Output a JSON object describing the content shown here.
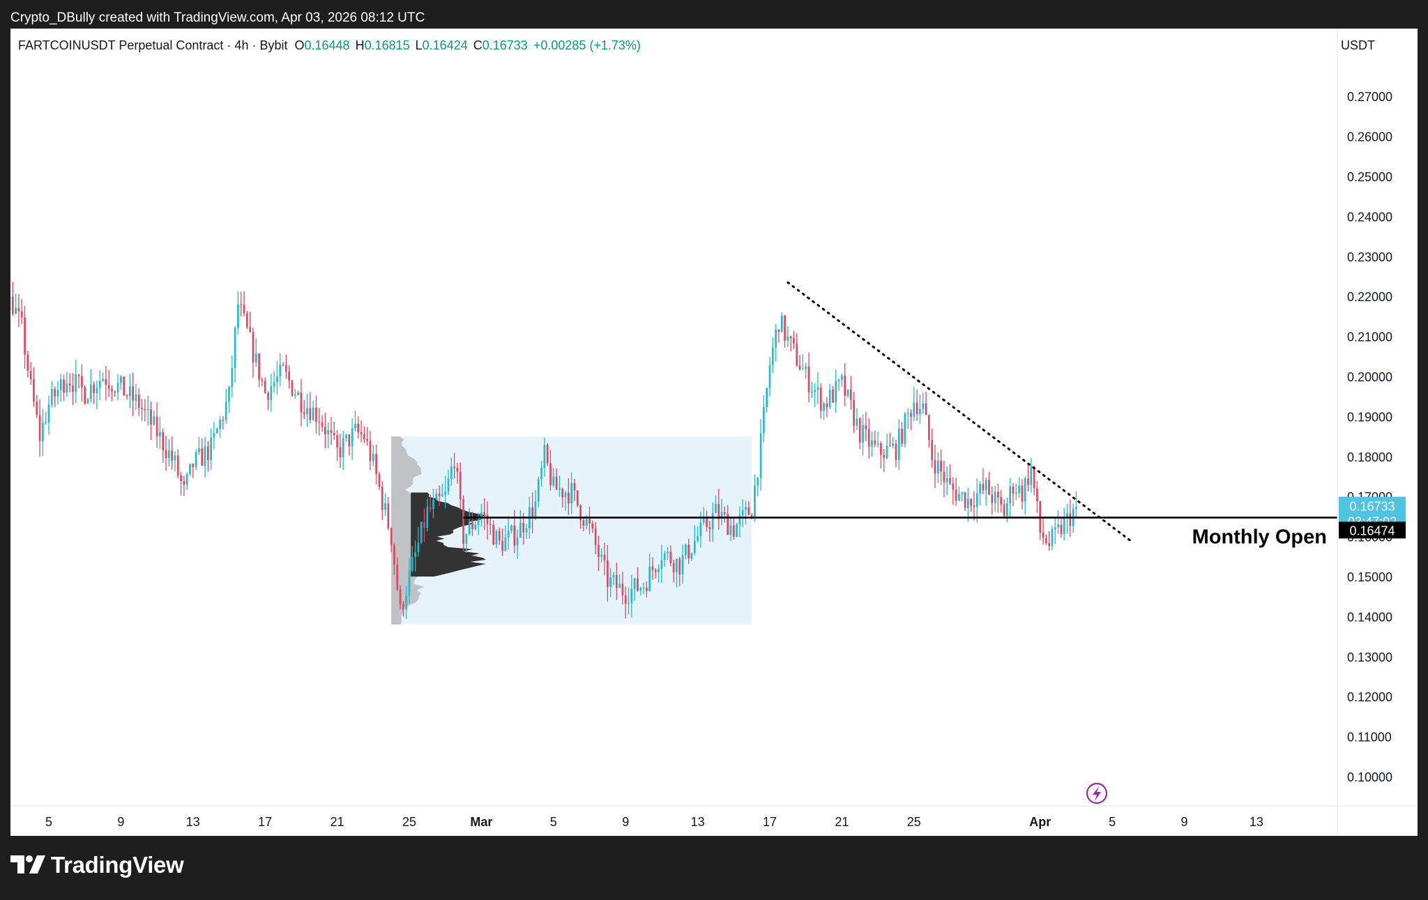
{
  "header": {
    "attribution": "Crypto_DBully created with TradingView.com, Apr 03, 2026 08:12 UTC"
  },
  "legend": {
    "symbol": "FARTCOINUSDT Perpetual Contract · 4h · Bybit",
    "open_label": "O",
    "open": "0.16448",
    "high_label": "H",
    "high": "0.16815",
    "low_label": "L",
    "low": "0.16424",
    "close_label": "C",
    "close": "0.16733",
    "change": "+0.00285 (+1.73%)"
  },
  "price_axis": {
    "currency": "USDT"
  },
  "badges": {
    "last_price": "0.16733",
    "countdown": "03:47:02",
    "level_price": "0.16474"
  },
  "footer": {
    "brand": "TradingView"
  },
  "colors": {
    "up": "#22b8cf",
    "down": "#e0465f",
    "last_price_badge": "#4fc3e0",
    "volume_profile": "#333333",
    "range_box": "#e7f3fb"
  },
  "chart_data": {
    "type": "candlestick",
    "interval": "4h",
    "ylim": [
      0.093,
      0.288
    ],
    "y_ticks": [
      "0.10000",
      "0.11000",
      "0.12000",
      "0.13000",
      "0.14000",
      "0.15000",
      "0.16000",
      "0.17000",
      "0.18000",
      "0.19000",
      "0.20000",
      "0.21000",
      "0.22000",
      "0.23000",
      "0.24000",
      "0.25000",
      "0.26000",
      "0.27000"
    ],
    "x_ticks": [
      {
        "label": "5",
        "date": "2026-02-05"
      },
      {
        "label": "9",
        "date": "2026-02-09"
      },
      {
        "label": "13",
        "date": "2026-02-13"
      },
      {
        "label": "17",
        "date": "2026-02-17"
      },
      {
        "label": "21",
        "date": "2026-02-21"
      },
      {
        "label": "25",
        "date": "2026-02-25"
      },
      {
        "label": "Mar",
        "date": "2026-03-01",
        "bold": true
      },
      {
        "label": "5",
        "date": "2026-03-05"
      },
      {
        "label": "9",
        "date": "2026-03-09"
      },
      {
        "label": "13",
        "date": "2026-03-13"
      },
      {
        "label": "17",
        "date": "2026-03-17"
      },
      {
        "label": "21",
        "date": "2026-03-21"
      },
      {
        "label": "25",
        "date": "2026-03-25"
      },
      {
        "label": "Apr",
        "date": "2026-04-01",
        "bold": true
      },
      {
        "label": "5",
        "date": "2026-04-05"
      },
      {
        "label": "9",
        "date": "2026-04-09"
      },
      {
        "label": "13",
        "date": "2026-04-13"
      }
    ],
    "price_path": [
      {
        "date": "2026-02-01",
        "price": 0.226
      },
      {
        "date": "2026-02-02",
        "price": 0.222
      },
      {
        "date": "2026-02-03",
        "price": 0.218
      },
      {
        "date": "2026-02-03T12:00",
        "price": 0.212
      },
      {
        "date": "2026-02-04",
        "price": 0.197
      },
      {
        "date": "2026-02-04T12:00",
        "price": 0.185
      },
      {
        "date": "2026-02-05",
        "price": 0.193
      },
      {
        "date": "2026-02-06",
        "price": 0.2
      },
      {
        "date": "2026-02-07",
        "price": 0.196
      },
      {
        "date": "2026-02-08",
        "price": 0.2
      },
      {
        "date": "2026-02-09",
        "price": 0.197
      },
      {
        "date": "2026-02-10",
        "price": 0.193
      },
      {
        "date": "2026-02-11",
        "price": 0.186
      },
      {
        "date": "2026-02-12",
        "price": 0.178
      },
      {
        "date": "2026-02-12T12:00",
        "price": 0.171
      },
      {
        "date": "2026-02-13",
        "price": 0.178
      },
      {
        "date": "2026-02-14",
        "price": 0.182
      },
      {
        "date": "2026-02-15",
        "price": 0.195
      },
      {
        "date": "2026-02-15T12:00",
        "price": 0.218
      },
      {
        "date": "2026-02-16",
        "price": 0.211
      },
      {
        "date": "2026-02-17",
        "price": 0.196
      },
      {
        "date": "2026-02-18",
        "price": 0.201
      },
      {
        "date": "2026-02-19",
        "price": 0.194
      },
      {
        "date": "2026-02-20",
        "price": 0.19
      },
      {
        "date": "2026-02-21",
        "price": 0.181
      },
      {
        "date": "2026-02-22",
        "price": 0.186
      },
      {
        "date": "2026-02-22T12:00",
        "price": 0.185
      },
      {
        "date": "2026-02-23",
        "price": 0.178
      },
      {
        "date": "2026-02-24",
        "price": 0.16
      },
      {
        "date": "2026-02-24T12:00",
        "price": 0.141
      },
      {
        "date": "2026-02-25",
        "price": 0.15
      },
      {
        "date": "2026-02-26",
        "price": 0.166
      },
      {
        "date": "2026-02-27",
        "price": 0.17
      },
      {
        "date": "2026-02-27T12:00",
        "price": 0.18
      },
      {
        "date": "2026-02-28",
        "price": 0.16
      },
      {
        "date": "2026-03-01",
        "price": 0.166
      },
      {
        "date": "2026-03-02",
        "price": 0.158
      },
      {
        "date": "2026-03-03",
        "price": 0.161
      },
      {
        "date": "2026-03-04",
        "price": 0.168
      },
      {
        "date": "2026-03-04T12:00",
        "price": 0.18
      },
      {
        "date": "2026-03-05",
        "price": 0.172
      },
      {
        "date": "2026-03-06",
        "price": 0.171
      },
      {
        "date": "2026-03-07",
        "price": 0.162
      },
      {
        "date": "2026-03-08",
        "price": 0.149
      },
      {
        "date": "2026-03-09",
        "price": 0.146
      },
      {
        "date": "2026-03-10",
        "price": 0.148
      },
      {
        "date": "2026-03-11",
        "price": 0.156
      },
      {
        "date": "2026-03-12",
        "price": 0.153
      },
      {
        "date": "2026-03-13",
        "price": 0.16
      },
      {
        "date": "2026-03-14",
        "price": 0.166
      },
      {
        "date": "2026-03-15",
        "price": 0.162
      },
      {
        "date": "2026-03-16",
        "price": 0.167
      },
      {
        "date": "2026-03-16T12:00",
        "price": 0.183
      },
      {
        "date": "2026-03-17",
        "price": 0.203
      },
      {
        "date": "2026-03-17T12:00",
        "price": 0.214
      },
      {
        "date": "2026-03-18",
        "price": 0.209
      },
      {
        "date": "2026-03-19",
        "price": 0.2
      },
      {
        "date": "2026-03-20",
        "price": 0.193
      },
      {
        "date": "2026-03-21",
        "price": 0.198
      },
      {
        "date": "2026-03-22",
        "price": 0.186
      },
      {
        "date": "2026-03-23",
        "price": 0.181
      },
      {
        "date": "2026-03-24",
        "price": 0.182
      },
      {
        "date": "2026-03-25",
        "price": 0.194
      },
      {
        "date": "2026-03-25T12:00",
        "price": 0.192
      },
      {
        "date": "2026-03-26",
        "price": 0.18
      },
      {
        "date": "2026-03-27",
        "price": 0.172
      },
      {
        "date": "2026-03-28",
        "price": 0.169
      },
      {
        "date": "2026-03-29",
        "price": 0.172
      },
      {
        "date": "2026-03-30",
        "price": 0.166
      },
      {
        "date": "2026-03-30T12:00",
        "price": 0.173
      },
      {
        "date": "2026-03-31",
        "price": 0.171
      },
      {
        "date": "2026-03-31T12:00",
        "price": 0.177
      },
      {
        "date": "2026-04-01",
        "price": 0.161
      },
      {
        "date": "2026-04-01T12:00",
        "price": 0.158
      },
      {
        "date": "2026-04-02",
        "price": 0.161
      },
      {
        "date": "2026-04-03",
        "price": 0.16733
      }
    ],
    "annotations": {
      "horizontal_line": {
        "price": 0.16474,
        "label": "Monthly Open"
      },
      "trendline": {
        "start": {
          "date": "2026-03-18",
          "price": 0.2235
        },
        "end": {
          "date": "2026-04-06",
          "price": 0.159
        },
        "style": "dotted"
      },
      "range_box": {
        "start": "2026-02-24",
        "end": "2026-03-16",
        "top": 0.185,
        "bottom": 0.138
      },
      "volume_profile": {
        "start": "2026-02-24",
        "price_range": [
          0.138,
          0.185
        ]
      }
    }
  }
}
